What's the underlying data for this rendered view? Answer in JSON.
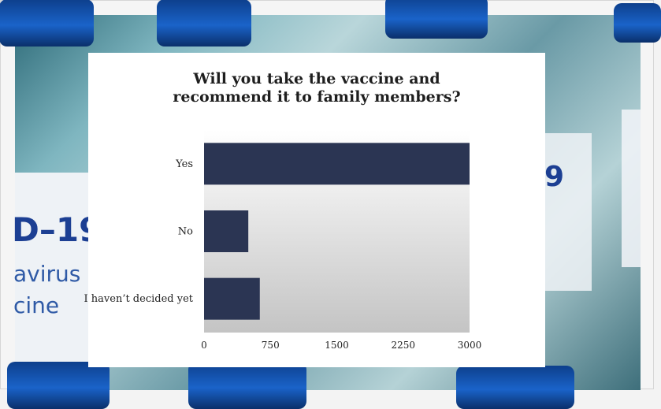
{
  "chart_data": {
    "type": "bar",
    "orientation": "horizontal",
    "title_line1": "Will you take the vaccine and",
    "title_line2": "recommend it to family members?",
    "categories": [
      "Yes",
      "No",
      "I haven’t decided yet"
    ],
    "values": [
      3000,
      500,
      630
    ],
    "xlim": [
      0,
      3000
    ],
    "xticks": [
      "0",
      "750",
      "1500",
      "2250",
      "3000"
    ],
    "bar_color": "#2b3553",
    "grid": false
  },
  "background_text": {
    "vial_code": "D–19",
    "vial_word1": "avirus",
    "vial_word2": "cine",
    "right_digit": "9"
  }
}
